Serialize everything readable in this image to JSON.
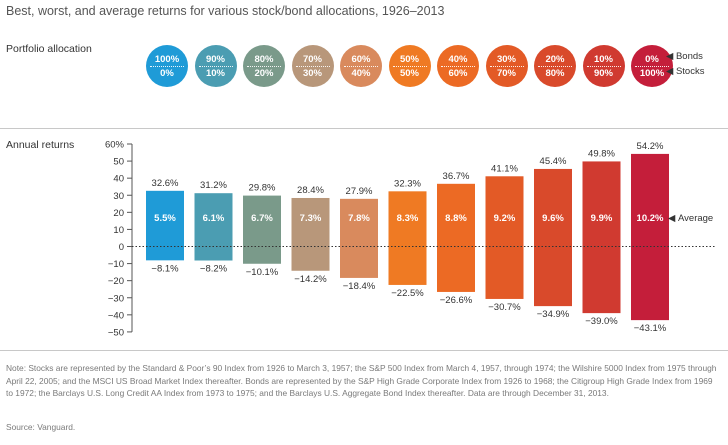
{
  "title": "Best, worst, and average returns for various stock/bond allocations, 1926–2013",
  "portfolio_label": "Portfolio allocation",
  "annual_label": "Annual returns",
  "allocations": [
    {
      "bonds": "100%",
      "stocks": "0%",
      "color": "#1f9bd7"
    },
    {
      "bonds": "90%",
      "stocks": "10%",
      "color": "#4b9db2"
    },
    {
      "bonds": "80%",
      "stocks": "20%",
      "color": "#7a9a8a"
    },
    {
      "bonds": "70%",
      "stocks": "30%",
      "color": "#b8977a"
    },
    {
      "bonds": "60%",
      "stocks": "40%",
      "color": "#d98a5d"
    },
    {
      "bonds": "50%",
      "stocks": "50%",
      "color": "#ef7a23"
    },
    {
      "bonds": "40%",
      "stocks": "60%",
      "color": "#ec6a24"
    },
    {
      "bonds": "30%",
      "stocks": "70%",
      "color": "#e35a26"
    },
    {
      "bonds": "20%",
      "stocks": "80%",
      "color": "#d94a2b"
    },
    {
      "bonds": "10%",
      "stocks": "90%",
      "color": "#d03a30"
    },
    {
      "bonds": "0%",
      "stocks": "100%",
      "color": "#c41e3a"
    }
  ],
  "legend": {
    "bonds": "Bonds",
    "stocks": "Stocks",
    "marker": "◀"
  },
  "average_label": "Average",
  "chart_data": {
    "type": "bar",
    "categories": [
      "100% bonds / 0% stocks",
      "90% / 10%",
      "80% / 20%",
      "70% / 30%",
      "60% / 40%",
      "50% / 50%",
      "40% / 60%",
      "30% / 70%",
      "20% / 80%",
      "10% / 90%",
      "0% / 100%"
    ],
    "series": [
      {
        "name": "Best",
        "values": [
          32.6,
          31.2,
          29.8,
          28.4,
          27.9,
          32.3,
          36.7,
          41.1,
          45.4,
          49.8,
          54.2
        ]
      },
      {
        "name": "Worst",
        "values": [
          -8.1,
          -8.2,
          -10.1,
          -14.2,
          -18.4,
          -22.5,
          -26.6,
          -30.7,
          -34.9,
          -39.0,
          -43.1
        ]
      },
      {
        "name": "Average",
        "values": [
          5.5,
          6.1,
          6.7,
          7.3,
          7.8,
          8.3,
          8.8,
          9.2,
          9.6,
          9.9,
          10.2
        ]
      }
    ],
    "best_labels": [
      "32.6%",
      "31.2%",
      "29.8%",
      "28.4%",
      "27.9%",
      "32.3%",
      "36.7%",
      "41.1%",
      "45.4%",
      "49.8%",
      "54.2%"
    ],
    "worst_labels": [
      "−8.1%",
      "−8.2%",
      "−10.1%",
      "−14.2%",
      "−18.4%",
      "−22.5%",
      "−26.6%",
      "−30.7%",
      "−34.9%",
      "−39.0%",
      "−43.1%"
    ],
    "avg_labels": [
      "5.5%",
      "6.1%",
      "6.7%",
      "7.3%",
      "7.8%",
      "8.3%",
      "8.8%",
      "9.2%",
      "9.6%",
      "9.9%",
      "10.2%"
    ],
    "ylim": [
      -50,
      60
    ],
    "yticks": [
      60,
      50,
      40,
      30,
      20,
      10,
      0,
      -10,
      -20,
      -30,
      -40,
      -50
    ],
    "ytick_labels": [
      "60%",
      "50",
      "40",
      "30",
      "20",
      "10",
      "0",
      "−10",
      "−20",
      "−30",
      "−40",
      "−50"
    ],
    "colors": [
      "#1f9bd7",
      "#4b9db2",
      "#7a9a8a",
      "#b8977a",
      "#d98a5d",
      "#ef7a23",
      "#ec6a24",
      "#e35a26",
      "#d94a2b",
      "#d03a30",
      "#c41e3a"
    ]
  },
  "note": "Note: Stocks are represented by the Standard & Poor’s 90 Index from 1926 to March 3, 1957; the S&P 500 Index from March 4, 1957, through 1974; the Wilshire 5000 Index from 1975 through April 22, 2005; and the MSCI US Broad Market Index thereafter. Bonds are represented by the S&P High Grade Corporate Index from 1926 to 1968; the Citigroup High Grade Index from 1969 to 1972; the Barclays U.S. Long Credit AA Index from 1973 to 1975; and the Barclays U.S. Aggregate Bond Index thereafter. Data are through December 31, 2013.",
  "source": "Source: Vanguard."
}
